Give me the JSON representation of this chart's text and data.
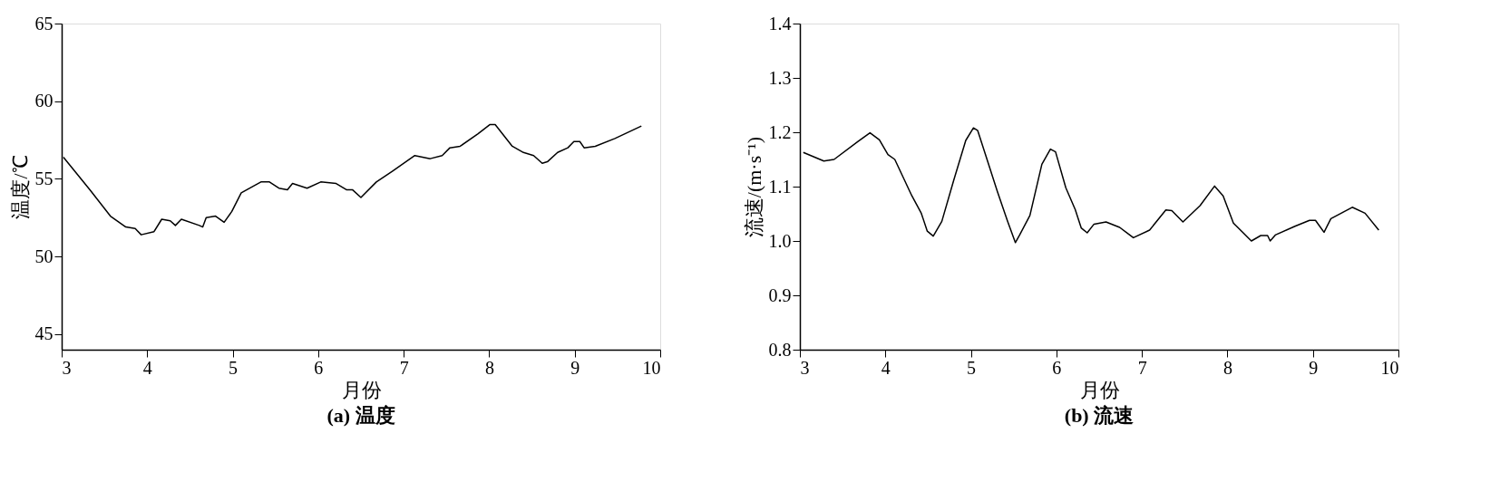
{
  "chart_data": [
    {
      "type": "line",
      "title": "(a) 温度",
      "xlabel": "月份",
      "ylabel": "温度/℃",
      "xlim": [
        3,
        10
      ],
      "xticks": [
        3,
        4,
        5,
        6,
        7,
        8,
        9,
        10
      ],
      "ylim": [
        44,
        65
      ],
      "yticks": [
        45,
        50,
        55,
        60,
        65
      ],
      "grid": false,
      "series": [
        {
          "color": "#000000",
          "x": [
            3.02,
            3.33,
            3.57,
            3.75,
            3.86,
            3.93,
            4.08,
            4.17,
            4.27,
            4.33,
            4.4,
            4.61,
            4.65,
            4.69,
            4.8,
            4.9,
            4.99,
            5.1,
            5.33,
            5.43,
            5.54,
            5.64,
            5.7,
            5.87,
            6.03,
            6.21,
            6.33,
            6.4,
            6.5,
            6.68,
            6.87,
            7.13,
            7.31,
            7.45,
            7.54,
            7.66,
            7.87,
            8.01,
            8.07,
            8.27,
            8.4,
            8.52,
            8.62,
            8.68,
            8.8,
            8.92,
            8.99,
            9.06,
            9.11,
            9.24,
            9.47,
            9.78
          ],
          "values": [
            56.4,
            54.3,
            52.6,
            51.9,
            51.8,
            51.4,
            51.6,
            52.4,
            52.3,
            52.0,
            52.4,
            52.0,
            51.9,
            52.5,
            52.6,
            52.2,
            52.9,
            54.1,
            54.8,
            54.8,
            54.4,
            54.3,
            54.7,
            54.4,
            54.8,
            54.7,
            54.3,
            54.3,
            53.8,
            54.8,
            55.5,
            56.5,
            56.3,
            56.5,
            57.0,
            57.1,
            57.9,
            58.5,
            58.5,
            57.1,
            56.7,
            56.5,
            56.0,
            56.1,
            56.7,
            57.0,
            57.4,
            57.4,
            57.0,
            57.1,
            57.6,
            58.4
          ]
        }
      ]
    },
    {
      "type": "line",
      "title": "(b) 流速",
      "xlabel": "月份",
      "ylabel": "流速/(m·s⁻¹)",
      "xlim": [
        3,
        10
      ],
      "xticks": [
        3,
        4,
        5,
        6,
        7,
        8,
        9,
        10
      ],
      "ylim": [
        0.8,
        1.4
      ],
      "yticks": [
        0.8,
        0.9,
        {
          "value": 1,
          "label": "1.0"
        },
        1.1,
        1.2,
        1.3,
        1.4
      ],
      "grid": false,
      "series": [
        {
          "color": "#000000",
          "x": [
            3.04,
            3.28,
            3.4,
            3.68,
            3.82,
            3.93,
            4.03,
            4.11,
            4.31,
            4.42,
            4.49,
            4.56,
            4.66,
            4.8,
            4.94,
            5.03,
            5.08,
            5.17,
            5.31,
            5.43,
            5.52,
            5.57,
            5.69,
            5.83,
            5.93,
            5.99,
            6.11,
            6.22,
            6.29,
            6.36,
            6.44,
            6.58,
            6.74,
            6.9,
            7.09,
            7.28,
            7.35,
            7.48,
            7.68,
            7.85,
            7.95,
            8.07,
            8.28,
            8.39,
            8.47,
            8.5,
            8.56,
            8.79,
            8.96,
            9.03,
            9.13,
            9.21,
            9.46,
            9.61,
            9.77
          ],
          "values": [
            1.163,
            1.147,
            1.15,
            1.183,
            1.199,
            1.186,
            1.159,
            1.15,
            1.083,
            1.051,
            1.018,
            1.009,
            1.036,
            1.112,
            1.185,
            1.208,
            1.203,
            1.159,
            1.091,
            1.036,
            0.997,
            1.011,
            1.047,
            1.141,
            1.169,
            1.164,
            1.098,
            1.058,
            1.024,
            1.015,
            1.031,
            1.035,
            1.025,
            1.006,
            1.02,
            1.057,
            1.056,
            1.035,
            1.065,
            1.101,
            1.083,
            1.033,
            1.0,
            1.01,
            1.01,
            1.0,
            1.011,
            1.027,
            1.038,
            1.038,
            1.016,
            1.041,
            1.062,
            1.051,
            1.02
          ]
        }
      ]
    }
  ]
}
